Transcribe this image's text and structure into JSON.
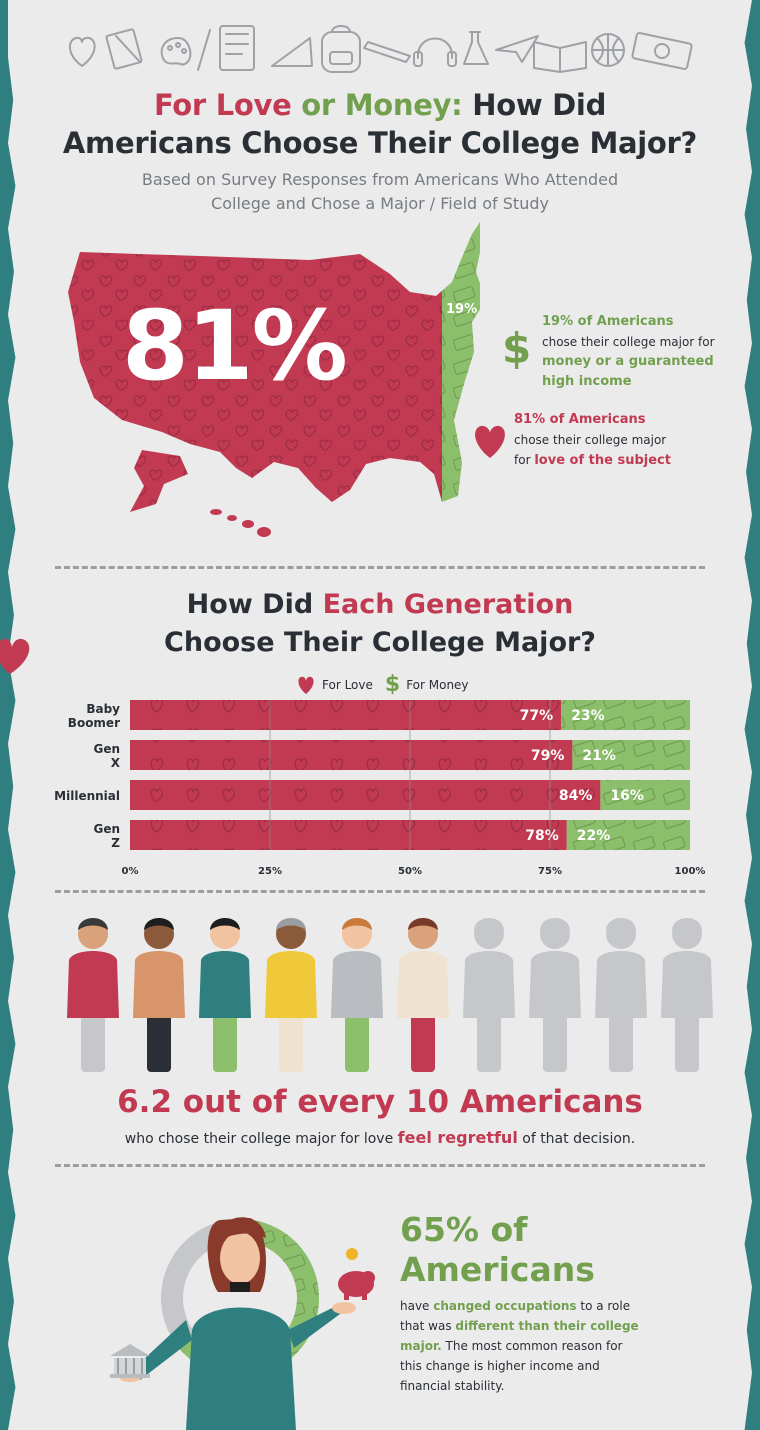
{
  "header": {
    "title_part1": "For Love",
    "title_part2": " or ",
    "title_part3": "Money:",
    "title_part4": " How Did",
    "title_line2": "Americans Choose Their College Major?",
    "subtitle_line1": "Based on Survey Responses from Americans Who Attended",
    "subtitle_line2": "College and Chose a Major / Field of Study"
  },
  "map": {
    "big_value": "81%",
    "small_value": "19%",
    "money_note_bold": "19% of Americans",
    "money_note_mid": "chose their college major for",
    "money_note_highlight1": "money or a guaranteed",
    "money_note_highlight2": "high income",
    "love_note_bold": "81% of Americans",
    "love_note_mid": "chose their college major",
    "love_note_prefix": "for",
    "love_note_highlight": "love of the subject",
    "colors": {
      "love": "#c23a52",
      "money": "#8cbf6b"
    }
  },
  "generation_section": {
    "title_part1": "How Did ",
    "title_part2": "Each Generation",
    "title_line2": "Choose Their College Major?",
    "legend_love": "For Love",
    "legend_money": "For Money"
  },
  "chart_data": {
    "type": "bar",
    "orientation": "horizontal",
    "stacked": true,
    "categories": [
      "Baby Boomer",
      "Gen X",
      "Millennial",
      "Gen Z"
    ],
    "series": [
      {
        "name": "For Love",
        "values": [
          77,
          79,
          84,
          78
        ],
        "color": "#c23a52"
      },
      {
        "name": "For Money",
        "values": [
          23,
          21,
          16,
          22
        ],
        "color": "#8cbf6b"
      }
    ],
    "xlim": [
      0,
      100
    ],
    "xticks": [
      "0%",
      "25%",
      "50%",
      "75%",
      "100%"
    ],
    "grid": true,
    "legend_position": "top"
  },
  "people_section": {
    "headline": "6.2 out of every 10 Americans",
    "sub_prefix": "who chose their college major for love ",
    "sub_highlight": "feel regretful",
    "sub_suffix": " of that decision.",
    "highlighted_people": 6.2,
    "total_people": 10
  },
  "occupation_section": {
    "value_line1": "65% of",
    "value_line2": "Americans",
    "p1": "have ",
    "p2": "changed occupations",
    "p3": " to a role that was ",
    "p4": "different than their college major.",
    "p5": " The most common reason for this change is higher income and financial stability.",
    "ring_fraction": 0.65
  }
}
